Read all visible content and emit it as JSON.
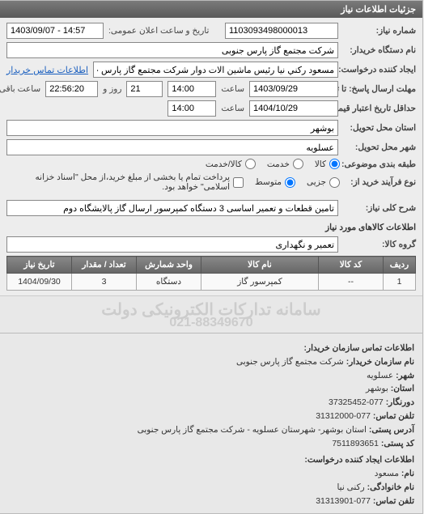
{
  "panel_title": "جزئیات اطلاعات نیاز",
  "labels": {
    "need_no": "شماره نیاز:",
    "announce_dt": "تاریخ و ساعت اعلان عمومی:",
    "buyer": "نام دستگاه خریدار:",
    "creator": "ایجاد کننده درخواست:",
    "buyer_contact_link": "اطلاعات تماس خریدار",
    "tender_deadline": "مهلت ارسال پاسخ: تا تاریخ:",
    "hour": "ساعت",
    "day_and": "روز و",
    "time_left": "ساعت باقی مانده",
    "price_validity": "حداقل تاریخ اعتبار قیمت: تا تاریخ:",
    "province": "استان محل تحویل:",
    "city": "شهر محل تحویل:",
    "package_type": "طبقه بندی موضوعی:",
    "buy_type": "نوع فرآیند خرید از:",
    "need_desc": "شرح کلی نیاز:",
    "goods_info": "اطلاعات کالاهای مورد نیاز",
    "goods_group": "گروه کالا:"
  },
  "radios": {
    "goods": "کالا",
    "service": "خدمت",
    "both": "کالا/خدمت",
    "minor": "جزیی",
    "medium": "متوسط",
    "all_pay": "پرداخت تمام یا بخشی از مبلغ خرید،از محل \"اسناد خزانه اسلامی\" خواهد بود."
  },
  "values": {
    "need_no": "1103093498000013",
    "announce_dt": "1403/09/07 - 14:57",
    "buyer": "شرکت مجتمع گاز پارس جنوبی",
    "creator": "مسعود رکني نيا رئيس ماشين الات دوار شرکت مجتمع گاز پارس جنوبي",
    "deadline_date": "1403/09/29",
    "deadline_time": "14:00",
    "days_left": "21",
    "time_left": "22:56:20",
    "validity_date": "1404/10/29",
    "validity_time": "14:00",
    "province": "بوشهر",
    "city": "عسلويه",
    "need_desc": "تامین قطعات و تعمیر اساسی 3 دستگاه کمپرسور ارسال گاز پالایشگاه دوم",
    "goods_group": "تعمیر و نگهداری"
  },
  "table": {
    "columns": [
      "ردیف",
      "کد کالا",
      "نام کالا",
      "واحد شمارش",
      "تعداد / مقدار",
      "تاریخ نیاز"
    ],
    "rows": [
      [
        "1",
        "--",
        "کمپرسور گاز",
        "دستگاه",
        "3",
        "1404/09/30"
      ]
    ],
    "col_widths": [
      "40px",
      "80px",
      "auto",
      "80px",
      "80px",
      "80px"
    ]
  },
  "watermark": {
    "line1": "سامانه تدارکات الکترونیکی دولت",
    "line2": "021-88349670"
  },
  "info": {
    "header": "اطلاعات تماس سازمان خریدار:",
    "org_name_l": "نام سازمان خریدار:",
    "org_name_v": "شرکت مجتمع گاز پارس جنوبی",
    "city_l": "شهر:",
    "city_v": "عسلویه",
    "province_l": "استان:",
    "province_v": "بوشهر",
    "fax_l": "دورنگار:",
    "fax_v": "077-37325452",
    "phone_l": "تلفن تماس:",
    "phone_v": "077-31312000",
    "addr_l": "آدرس پستی:",
    "addr_v": "استان بوشهر- شهرستان عسلویه - شرکت مجتمع گاز پارس جنوبی",
    "post_l": "کد پستی:",
    "post_v": "7511893651",
    "creator_header": "اطلاعات ایجاد کننده درخواست:",
    "name_l": "نام:",
    "name_v": "مسعود",
    "lname_l": "نام خانوادگی:",
    "lname_v": "رکنی نیا",
    "cphone_l": "تلفن تماس:",
    "cphone_v": "077-31313901"
  },
  "colors": {
    "header_grad_from": "#7a7a7a",
    "header_grad_to": "#5a5a5a",
    "link": "#1a5fbf",
    "th_from": "#888888",
    "th_to": "#666666",
    "wm": "#cccccc",
    "bg": "#ededed"
  }
}
